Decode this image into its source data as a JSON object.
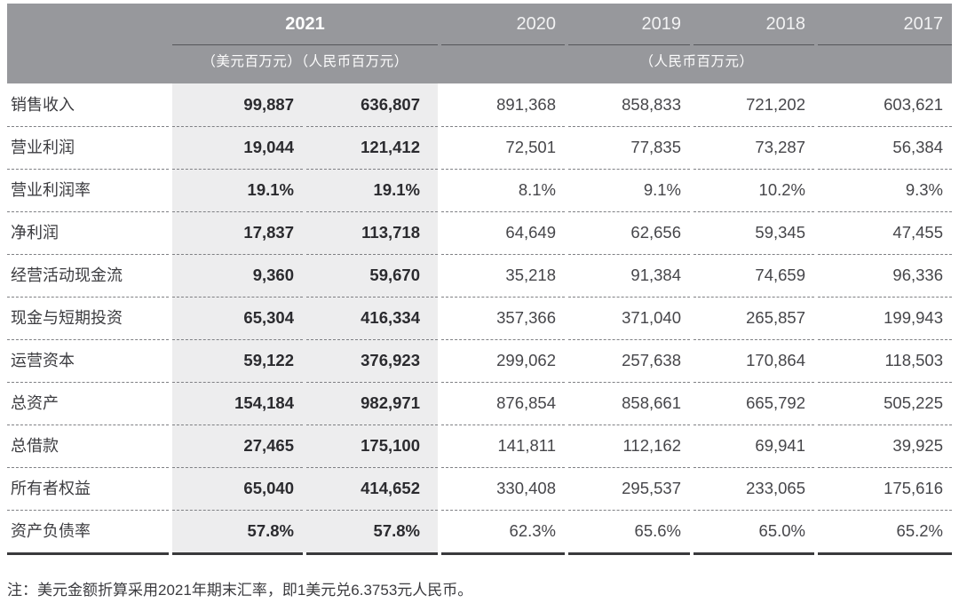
{
  "table": {
    "header": {
      "year_2021": "2021",
      "years": [
        "2020",
        "2019",
        "2018",
        "2017"
      ],
      "units_2021": "（美元百万元）（人民币百万元）",
      "units_other": "（人民币百万元）"
    },
    "rows": [
      {
        "label": "销售收入",
        "usd_2021": "99,887",
        "rmb_2021": "636,807",
        "y2020": "891,368",
        "y2019": "858,833",
        "y2018": "721,202",
        "y2017": "603,621"
      },
      {
        "label": "营业利润",
        "usd_2021": "19,044",
        "rmb_2021": "121,412",
        "y2020": "72,501",
        "y2019": "77,835",
        "y2018": "73,287",
        "y2017": "56,384"
      },
      {
        "label": "营业利润率",
        "usd_2021": "19.1%",
        "rmb_2021": "19.1%",
        "y2020": "8.1%",
        "y2019": "9.1%",
        "y2018": "10.2%",
        "y2017": "9.3%"
      },
      {
        "label": "净利润",
        "usd_2021": "17,837",
        "rmb_2021": "113,718",
        "y2020": "64,649",
        "y2019": "62,656",
        "y2018": "59,345",
        "y2017": "47,455"
      },
      {
        "label": "经营活动现金流",
        "usd_2021": "9,360",
        "rmb_2021": "59,670",
        "y2020": "35,218",
        "y2019": "91,384",
        "y2018": "74,659",
        "y2017": "96,336"
      },
      {
        "label": "现金与短期投资",
        "usd_2021": "65,304",
        "rmb_2021": "416,334",
        "y2020": "357,366",
        "y2019": "371,040",
        "y2018": "265,857",
        "y2017": "199,943"
      },
      {
        "label": "运营资本",
        "usd_2021": "59,122",
        "rmb_2021": "376,923",
        "y2020": "299,062",
        "y2019": "257,638",
        "y2018": "170,864",
        "y2017": "118,503"
      },
      {
        "label": "总资产",
        "usd_2021": "154,184",
        "rmb_2021": "982,971",
        "y2020": "876,854",
        "y2019": "858,661",
        "y2018": "665,792",
        "y2017": "505,225"
      },
      {
        "label": "总借款",
        "usd_2021": "27,465",
        "rmb_2021": "175,100",
        "y2020": "141,811",
        "y2019": "112,162",
        "y2018": "69,941",
        "y2017": "39,925"
      },
      {
        "label": "所有者权益",
        "usd_2021": "65,040",
        "rmb_2021": "414,652",
        "y2020": "330,408",
        "y2019": "295,537",
        "y2018": "233,065",
        "y2017": "175,616"
      },
      {
        "label": "资产负债率",
        "usd_2021": "57.8%",
        "rmb_2021": "57.8%",
        "y2020": "62.3%",
        "y2019": "65.6%",
        "y2018": "65.0%",
        "y2017": "65.2%"
      }
    ]
  },
  "note": "注：美元金额折算采用2021年期末汇率，即1美元兑6.3753元人民币。",
  "colors": {
    "header_bg": "#97989c",
    "header_text": "#ffffff",
    "shade_bg": "#ededee",
    "row_divider": "#7f8084",
    "bottom_rule": "#3a3a3c",
    "label_text": "#3c3c40",
    "value_text": "#46464a",
    "value_text_bold": "#2b2b2f",
    "note_text": "#3b3b3f"
  }
}
